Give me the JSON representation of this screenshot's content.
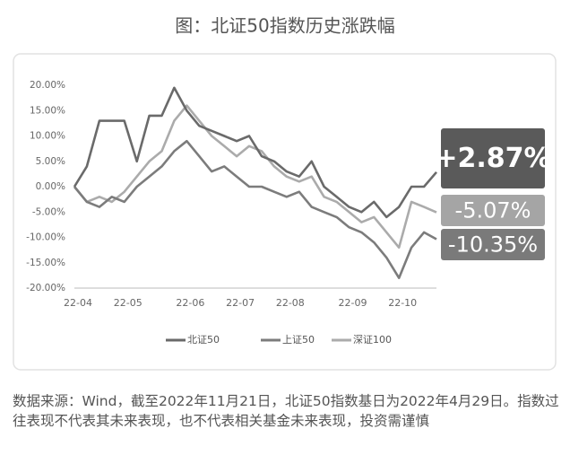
{
  "chart_data": {
    "type": "line",
    "title": "图：北证50指数历史涨跌幅",
    "categories": [
      "22-04",
      null,
      null,
      null,
      "22-05",
      null,
      null,
      null,
      null,
      "22-06",
      null,
      null,
      null,
      "22-07",
      null,
      null,
      null,
      "22-08",
      null,
      null,
      null,
      null,
      "22-09",
      null,
      null,
      null,
      "22-10",
      null,
      null,
      null
    ],
    "series": [
      {
        "name": "北证50",
        "color": "#6a6a6a",
        "badge_color": "#5a5a5a",
        "values": [
          0,
          4,
          13,
          13,
          13,
          5,
          14,
          14,
          19.5,
          15,
          12,
          11,
          10,
          9,
          10,
          6,
          5,
          3,
          2,
          5,
          0,
          -2,
          -4,
          -5,
          -3,
          -6,
          -4,
          0,
          0,
          2.87
        ],
        "value_labels": [
          null,
          null,
          null,
          null,
          null,
          null,
          null,
          null,
          null,
          null,
          null,
          null,
          null,
          null,
          null,
          null,
          null,
          null,
          null,
          null,
          null,
          null,
          null,
          null,
          null,
          null,
          null,
          null,
          null,
          "+2.87%"
        ]
      },
      {
        "name": "上证50",
        "color": "#7c7c7c",
        "badge_color": "#7a7a7a",
        "values": [
          0,
          -3,
          -4,
          -2,
          -3,
          0,
          2,
          4,
          7,
          9,
          6,
          3,
          4,
          2,
          0,
          0,
          -1,
          -2,
          -1,
          -4,
          -5,
          -6,
          -8,
          -9,
          -11,
          -14,
          -18,
          -12,
          -9,
          -10.35
        ],
        "value_labels": [
          null,
          null,
          null,
          null,
          null,
          null,
          null,
          null,
          null,
          null,
          null,
          null,
          null,
          null,
          null,
          null,
          null,
          null,
          null,
          null,
          null,
          null,
          null,
          null,
          null,
          null,
          null,
          null,
          null,
          "-10.35%"
        ]
      },
      {
        "name": "深证100",
        "color": "#ababab",
        "badge_color": "#a5a5a5",
        "values": [
          0,
          -3,
          -2,
          -3,
          -1,
          2,
          5,
          7,
          13,
          16,
          13,
          10,
          8,
          6,
          8,
          7,
          4,
          2,
          1,
          2,
          -2,
          -3,
          -5,
          -7,
          -6,
          -9,
          -12,
          -3,
          -4,
          -5.07
        ],
        "value_labels": [
          null,
          null,
          null,
          null,
          null,
          null,
          null,
          null,
          null,
          null,
          null,
          null,
          null,
          null,
          null,
          null,
          null,
          null,
          null,
          null,
          null,
          null,
          null,
          null,
          null,
          null,
          null,
          null,
          null,
          "-5.07%"
        ]
      }
    ],
    "ylim": [
      -20,
      20
    ],
    "yticks": [
      {
        "value": 20,
        "label": "20.00%"
      },
      {
        "value": 15,
        "label": "15.00%"
      },
      {
        "value": 10,
        "label": "10.00%"
      },
      {
        "value": 5,
        "label": "5.00%"
      },
      {
        "value": 0,
        "label": "0.00%"
      },
      {
        "value": -5,
        "label": "-5.00%"
      },
      {
        "value": -10,
        "label": "-10.00%"
      },
      {
        "value": -15,
        "label": "-15.00%"
      },
      {
        "value": -20,
        "label": "-20.00%"
      }
    ],
    "grid": false,
    "legend": "bottom",
    "note": "数据来源：Wind，截至2022年11月21日，北证50指数基日为2022年4月29日。指数过往表现不代表其未来表现，也不代表相关基金未来表现，投资需谨慎"
  }
}
